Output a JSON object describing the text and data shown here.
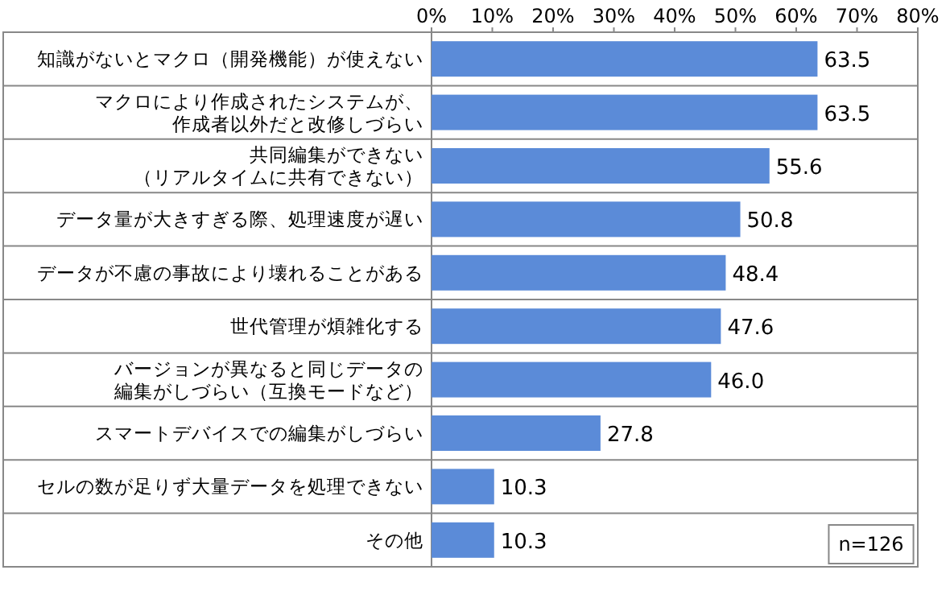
{
  "chart_data": {
    "type": "bar",
    "orientation": "horizontal",
    "categories": [
      "知識がないとマクロ（開発機能）が使えない",
      "マクロにより作成されたシステムが、作成者以外だと改修しづらい",
      "共同編集ができない（リアルタイムに共有できない）",
      "データ量が大きすぎる際、処理速度が遅い",
      "データが不慮の事故により壊れることがある",
      "世代管理が煩雑化する",
      "バージョンが異なると同じデータの編集がしづらい（互換モードなど）",
      "スマートデバイスでの編集がしづらい",
      "セルの数が足りず大量データを処理できない",
      "その他"
    ],
    "values": [
      63.5,
      63.5,
      55.6,
      50.8,
      48.4,
      47.6,
      46.0,
      27.8,
      10.3,
      10.3
    ],
    "value_labels": [
      "63.5",
      "63.5",
      "55.6",
      "50.8",
      "48.4",
      "47.6",
      "46.0",
      "27.8",
      "10.3",
      "10.3"
    ],
    "color": "#5b8bd8",
    "xlim": [
      0,
      80
    ],
    "xticks": [
      {
        "value": 0,
        "label": "0%"
      },
      {
        "value": 10,
        "label": "10%"
      },
      {
        "value": 20,
        "label": "20%"
      },
      {
        "value": 30,
        "label": "30%"
      },
      {
        "value": 40,
        "label": "40%"
      },
      {
        "value": 50,
        "label": "50%"
      },
      {
        "value": 60,
        "label": "60%"
      },
      {
        "value": 70,
        "label": "70%"
      },
      {
        "value": 80,
        "label": "80%"
      }
    ],
    "grid": "y",
    "annotations": [
      "n=126"
    ]
  }
}
